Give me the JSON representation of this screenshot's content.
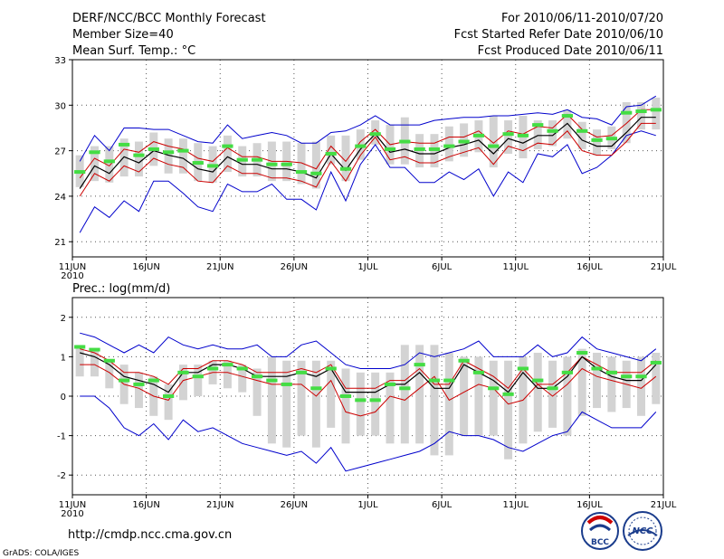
{
  "header": {
    "title": "DERF/NCC/BCC Monthly Forecast",
    "member_size": "Member Size=40",
    "variable": "Mean Surf. Temp.: °C",
    "period": "For 2010/06/11-2010/07/20",
    "started": "Fcst Started Refer Date 2010/06/10",
    "produced": "Fcst Produced Date 2010/06/11"
  },
  "footer": {
    "url": "http://cmdp.ncc.cma.gov.cn",
    "grads": "GrADS: COLA/IGES",
    "logo_bcc": "BCC",
    "logo_ncc": "NCC"
  },
  "colors": {
    "box": "#d3d3d3",
    "member": "#44dd44",
    "envelope": "#0000cc",
    "spread": "#cc0000",
    "mean": "#000000",
    "grid": "#555555"
  },
  "chart_data": [
    {
      "type": "line",
      "title": "Mean Surf. Temp.: °C",
      "xlabel": "",
      "ylabel": "",
      "x_days": 40,
      "x_tick_labels": [
        "11JUN",
        "16JUN",
        "21JUN",
        "26JUN",
        "1JUL",
        "6JUL",
        "11JUL",
        "16JUL",
        "21JUL"
      ],
      "x_tick_days": [
        0,
        5,
        10,
        15,
        20,
        25,
        30,
        35,
        40
      ],
      "x_year_label": "2010",
      "ylim": [
        20,
        33
      ],
      "y_ticks": [
        21,
        24,
        27,
        30,
        33
      ],
      "series": [
        {
          "name": "max",
          "values": [
            21.6,
            23.3,
            22.6,
            23.7,
            23.0,
            25.0,
            25.0,
            24.2,
            23.3,
            23.0,
            24.8,
            24.3,
            24.3,
            24.8,
            23.8,
            23.8,
            23.1,
            25.6,
            23.7,
            26.1,
            27.4,
            25.9,
            25.9,
            24.9,
            24.9,
            25.6,
            25.1,
            25.8,
            24.0,
            25.6,
            24.9,
            26.8,
            26.6,
            27.4,
            25.5,
            25.9,
            26.7,
            28.0,
            28.3,
            28.0
          ]
        },
        {
          "name": "min",
          "values": [
            26.3,
            28.0,
            27.0,
            28.5,
            28.5,
            28.4,
            28.4,
            28.0,
            27.6,
            27.5,
            28.7,
            27.8,
            28.0,
            28.2,
            28.0,
            27.5,
            27.5,
            28.2,
            28.3,
            28.7,
            29.3,
            28.7,
            28.7,
            28.7,
            29.0,
            29.1,
            29.2,
            29.2,
            29.3,
            29.3,
            29.4,
            29.5,
            29.4,
            29.7,
            29.2,
            29.1,
            28.7,
            29.9,
            30.0,
            30.6
          ]
        },
        {
          "name": "spread_low",
          "values": [
            24.0,
            25.5,
            25.0,
            26.0,
            25.6,
            26.5,
            26.1,
            25.9,
            25.0,
            24.9,
            26.0,
            25.5,
            25.5,
            25.2,
            25.2,
            25.0,
            24.6,
            26.3,
            25.0,
            26.7,
            27.9,
            26.4,
            26.6,
            26.2,
            26.2,
            26.6,
            26.9,
            27.2,
            26.1,
            27.3,
            27.0,
            27.5,
            27.4,
            28.3,
            27.0,
            26.7,
            26.7,
            27.6,
            28.8,
            28.8
          ]
        },
        {
          "name": "spread_high",
          "values": [
            25.2,
            26.5,
            26.0,
            27.1,
            26.9,
            27.6,
            27.3,
            27.1,
            26.5,
            26.3,
            27.2,
            26.6,
            26.6,
            26.3,
            26.3,
            26.2,
            25.8,
            27.3,
            26.3,
            27.6,
            28.4,
            27.4,
            27.6,
            27.5,
            27.5,
            27.9,
            27.9,
            28.3,
            27.5,
            28.3,
            28.1,
            28.6,
            28.5,
            29.4,
            28.4,
            27.9,
            28.0,
            28.8,
            29.7,
            29.7
          ]
        },
        {
          "name": "mean",
          "values": [
            24.5,
            26.0,
            25.5,
            26.6,
            26.2,
            27.0,
            26.7,
            26.5,
            25.8,
            25.6,
            26.6,
            26.1,
            26.1,
            25.8,
            25.8,
            25.6,
            25.2,
            26.8,
            25.7,
            27.1,
            28.1,
            26.9,
            27.1,
            26.8,
            26.8,
            27.2,
            27.4,
            27.7,
            26.8,
            27.8,
            27.5,
            28.0,
            28.0,
            28.8,
            27.7,
            27.3,
            27.3,
            28.2,
            29.2,
            29.2
          ]
        },
        {
          "name": "box_low",
          "values": [
            24.6,
            25.0,
            24.9,
            25.3,
            25.3,
            26.0,
            25.5,
            25.5,
            25.0,
            24.9,
            25.6,
            25.3,
            25.3,
            25.0,
            25.0,
            24.8,
            24.5,
            26.1,
            25.0,
            26.4,
            27.4,
            26.1,
            26.1,
            25.9,
            25.9,
            26.3,
            26.6,
            26.9,
            25.9,
            26.8,
            26.5,
            27.1,
            27.3,
            27.8,
            27.1,
            26.7,
            27.1,
            27.5,
            28.4,
            28.4
          ]
        },
        {
          "name": "box_high",
          "values": [
            26.7,
            27.3,
            27.3,
            27.8,
            27.6,
            28.2,
            27.8,
            27.8,
            27.5,
            27.3,
            28.0,
            27.3,
            27.5,
            27.6,
            27.6,
            27.5,
            27.6,
            28.0,
            28.0,
            28.4,
            29.0,
            28.7,
            29.2,
            28.1,
            28.1,
            28.6,
            28.8,
            29.0,
            29.3,
            29.0,
            29.3,
            29.0,
            29.0,
            29.7,
            28.9,
            28.4,
            28.6,
            30.2,
            30.2,
            30.5
          ]
        },
        {
          "name": "member",
          "values": [
            25.6,
            26.9,
            26.3,
            27.4,
            26.7,
            27.1,
            26.9,
            27.0,
            26.2,
            26.0,
            27.3,
            26.4,
            26.4,
            26.1,
            26.1,
            25.6,
            25.5,
            26.8,
            25.8,
            27.3,
            28.1,
            27.1,
            27.6,
            27.1,
            27.1,
            27.3,
            27.6,
            28.0,
            27.3,
            28.1,
            28.0,
            28.7,
            28.3,
            29.3,
            28.3,
            27.7,
            27.8,
            29.5,
            29.6,
            29.7
          ]
        }
      ]
    },
    {
      "type": "line",
      "title": "Prec.: log(mm/d)",
      "xlabel": "",
      "ylabel": "",
      "x_days": 40,
      "x_tick_labels": [
        "11JUN",
        "16JUN",
        "21JUN",
        "26JUN",
        "1JUL",
        "6JUL",
        "11JUL",
        "16JUL",
        "21JUL"
      ],
      "x_tick_days": [
        0,
        5,
        10,
        15,
        20,
        25,
        30,
        35,
        40
      ],
      "x_year_label": "2010",
      "ylim": [
        -2.5,
        2.5
      ],
      "y_ticks": [
        -2,
        -1,
        0,
        1,
        2
      ],
      "series": [
        {
          "name": "max",
          "values": [
            1.6,
            1.5,
            1.3,
            1.1,
            1.3,
            1.1,
            1.5,
            1.3,
            1.2,
            1.3,
            1.2,
            1.2,
            1.3,
            1.0,
            1.0,
            1.3,
            1.4,
            1.1,
            0.8,
            0.7,
            0.7,
            0.7,
            0.8,
            1.1,
            1.0,
            1.1,
            1.2,
            1.4,
            1.0,
            1.0,
            1.0,
            1.3,
            1.0,
            1.1,
            1.5,
            1.2,
            1.1,
            1.0,
            0.9,
            1.2
          ]
        },
        {
          "name": "min",
          "values": [
            0.0,
            0.0,
            -0.3,
            -0.8,
            -1.0,
            -0.7,
            -1.1,
            -0.6,
            -0.9,
            -0.8,
            -1.0,
            -1.2,
            -1.3,
            -1.4,
            -1.5,
            -1.4,
            -1.7,
            -1.3,
            -1.9,
            -1.8,
            -1.7,
            -1.6,
            -1.5,
            -1.4,
            -1.2,
            -0.9,
            -1.0,
            -1.0,
            -1.1,
            -1.3,
            -1.4,
            -1.2,
            -1.0,
            -0.9,
            -0.4,
            -0.6,
            -0.8,
            -0.8,
            -0.8,
            -0.4
          ]
        },
        {
          "name": "spread_low",
          "values": [
            0.8,
            0.8,
            0.6,
            0.3,
            0.2,
            0.0,
            -0.1,
            0.4,
            0.5,
            0.6,
            0.6,
            0.5,
            0.4,
            0.3,
            0.3,
            0.3,
            0.0,
            0.4,
            -0.4,
            -0.5,
            -0.4,
            0.0,
            -0.1,
            0.2,
            0.5,
            -0.1,
            0.1,
            0.3,
            0.2,
            -0.2,
            -0.1,
            0.3,
            0.0,
            0.3,
            0.7,
            0.5,
            0.4,
            0.3,
            0.2,
            0.5
          ]
        },
        {
          "name": "spread_high",
          "values": [
            1.2,
            1.1,
            0.9,
            0.6,
            0.6,
            0.5,
            0.3,
            0.7,
            0.7,
            0.9,
            0.9,
            0.8,
            0.6,
            0.6,
            0.6,
            0.7,
            0.6,
            0.8,
            0.2,
            0.2,
            0.2,
            0.4,
            0.4,
            0.7,
            0.3,
            0.3,
            0.9,
            0.7,
            0.5,
            0.2,
            0.7,
            0.3,
            0.3,
            0.6,
            1.0,
            0.8,
            0.6,
            0.6,
            0.6,
            0.9
          ]
        },
        {
          "name": "mean",
          "values": [
            1.1,
            1.0,
            0.8,
            0.5,
            0.4,
            0.3,
            0.1,
            0.6,
            0.6,
            0.8,
            0.8,
            0.7,
            0.5,
            0.5,
            0.5,
            0.6,
            0.5,
            0.7,
            0.1,
            0.1,
            0.1,
            0.3,
            0.3,
            0.6,
            0.2,
            0.2,
            0.8,
            0.6,
            0.4,
            0.1,
            0.6,
            0.2,
            0.2,
            0.5,
            1.0,
            0.7,
            0.5,
            0.4,
            0.4,
            0.8
          ]
        },
        {
          "name": "box_low",
          "values": [
            0.5,
            0.5,
            0.2,
            -0.2,
            -0.3,
            -0.5,
            -0.6,
            -0.1,
            0.0,
            0.3,
            0.2,
            0.1,
            -0.5,
            -1.2,
            -1.3,
            -1.0,
            -1.3,
            -0.8,
            -1.2,
            -1.0,
            -1.0,
            -1.2,
            -1.2,
            -1.2,
            -1.5,
            -1.5,
            -1.0,
            -1.0,
            -1.0,
            -1.6,
            -1.2,
            -0.9,
            -0.8,
            -1.0,
            -0.5,
            -0.3,
            -0.4,
            -0.3,
            -0.5,
            -0.2
          ]
        },
        {
          "name": "box_high",
          "values": [
            1.3,
            1.2,
            0.9,
            0.8,
            0.6,
            0.5,
            0.3,
            0.8,
            0.8,
            0.9,
            0.9,
            0.8,
            0.7,
            1.0,
            0.9,
            0.9,
            0.9,
            0.9,
            0.7,
            0.6,
            0.6,
            0.6,
            1.3,
            1.3,
            1.3,
            1.1,
            1.0,
            1.0,
            0.9,
            0.9,
            1.0,
            1.1,
            0.9,
            1.0,
            1.2,
            1.1,
            1.0,
            0.9,
            1.0,
            1.1
          ]
        },
        {
          "name": "member",
          "values": [
            1.25,
            1.18,
            0.9,
            0.4,
            0.3,
            0.4,
            0.0,
            0.6,
            0.5,
            0.7,
            0.8,
            0.7,
            0.5,
            0.4,
            0.3,
            0.6,
            0.2,
            0.7,
            0.0,
            -0.1,
            -0.1,
            0.3,
            0.2,
            0.8,
            0.4,
            0.4,
            0.9,
            0.6,
            0.2,
            0.05,
            0.7,
            0.4,
            0.2,
            0.6,
            1.1,
            0.7,
            0.6,
            0.5,
            0.5,
            0.85
          ]
        }
      ]
    }
  ]
}
